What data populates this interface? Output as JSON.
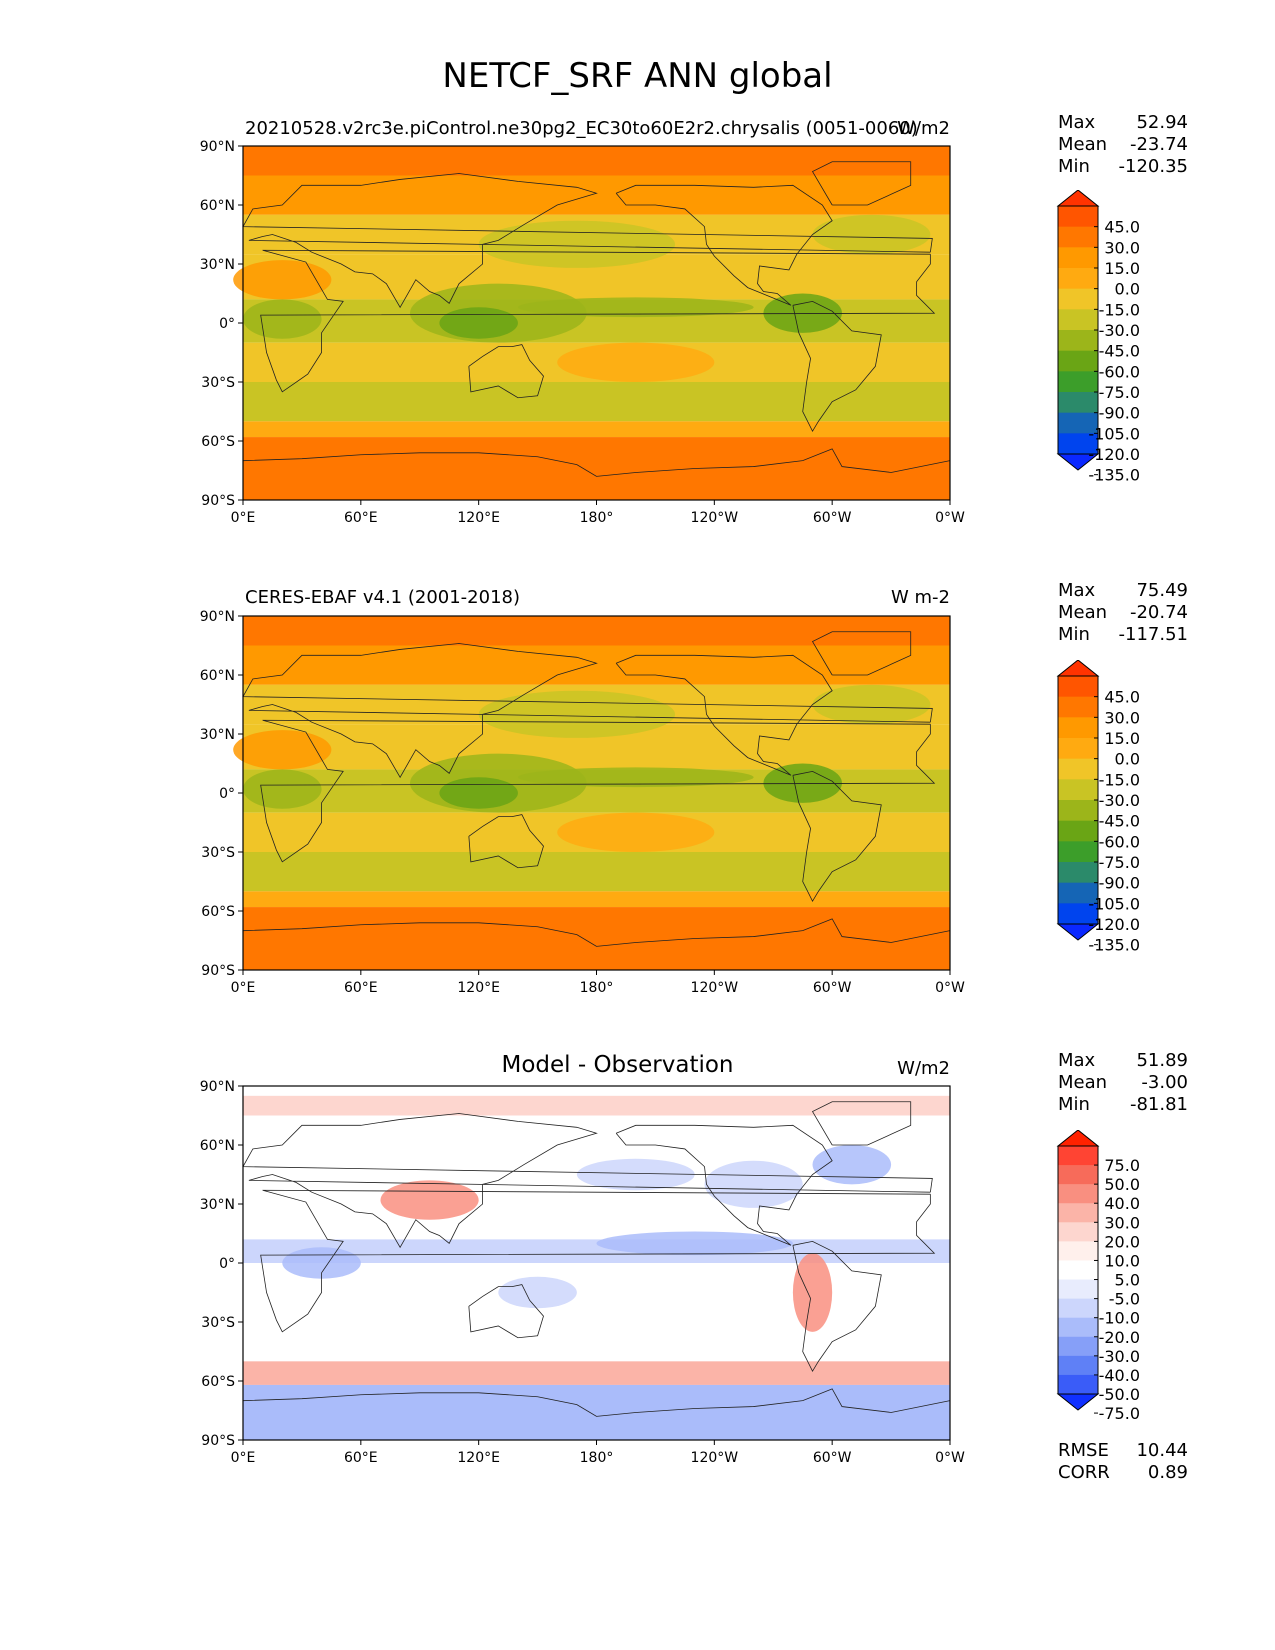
{
  "title": "NETCF_SRF ANN global",
  "panels": [
    {
      "left_title": "20210528.v2rc3e.piControl.ne30pg2_EC30to60E2r2.chrysalis (0051-0060)",
      "center_title": "",
      "units": "W/m2",
      "stats": {
        "max_label": "Max",
        "max": "52.94",
        "mean_label": "Mean",
        "mean": "-23.74",
        "min_label": "Min",
        "min": "-120.35"
      },
      "colorbar": {
        "labels": [
          "45.0",
          "30.0",
          "15.0",
          "0.0",
          "-15.0",
          "-30.0",
          "-45.0",
          "-60.0",
          "-75.0",
          "-90.0",
          "-105.0",
          "-120.0",
          "-135.0"
        ],
        "colors": [
          "#ff3300",
          "#ff5500",
          "#ff7700",
          "#ff9900",
          "#ffaa11",
          "#f0c528",
          "#c9c424",
          "#9cb51a",
          "#6aa515",
          "#3c9e2a",
          "#2b8a6a",
          "#1565b5",
          "#0044ee",
          "#0a28ff"
        ]
      }
    },
    {
      "left_title": "CERES-EBAF v4.1 (2001-2018)",
      "center_title": "",
      "units": "W m-2",
      "stats": {
        "max_label": "Max",
        "max": "75.49",
        "mean_label": "Mean",
        "mean": "-20.74",
        "min_label": "Min",
        "min": "-117.51"
      },
      "colorbar": {
        "labels": [
          "45.0",
          "30.0",
          "15.0",
          "0.0",
          "-15.0",
          "-30.0",
          "-45.0",
          "-60.0",
          "-75.0",
          "-90.0",
          "-105.0",
          "-120.0",
          "-135.0"
        ],
        "colors": [
          "#ff3300",
          "#ff5500",
          "#ff7700",
          "#ff9900",
          "#ffaa11",
          "#f0c528",
          "#c9c424",
          "#9cb51a",
          "#6aa515",
          "#3c9e2a",
          "#2b8a6a",
          "#1565b5",
          "#0044ee",
          "#0a28ff"
        ]
      }
    },
    {
      "left_title": "",
      "center_title": "Model - Observation",
      "units": "W/m2",
      "stats": {
        "max_label": "Max",
        "max": "51.89",
        "mean_label": "Mean",
        "mean": "-3.00",
        "min_label": "Min",
        "min": "-81.81"
      },
      "colorbar": {
        "labels": [
          "75.0",
          "50.0",
          "40.0",
          "30.0",
          "20.0",
          "10.0",
          "5.0",
          "-5.0",
          "-10.0",
          "-20.0",
          "-30.0",
          "-40.0",
          "-50.0",
          "-75.0"
        ],
        "colors": [
          "#ff2200",
          "#ff4433",
          "#f76b5a",
          "#f98f80",
          "#fbb4a8",
          "#fdd6cf",
          "#fff0ec",
          "#ffffff",
          "#e8ecfd",
          "#ccd6fc",
          "#aabcfa",
          "#869ff8",
          "#5f80f6",
          "#3a5cf8",
          "#1030ff"
        ]
      },
      "extra_stats": {
        "rmse_label": "RMSE",
        "rmse": "10.44",
        "corr_label": "CORR",
        "corr": "0.89"
      }
    }
  ],
  "axes": {
    "lat_ticks": [
      "90°N",
      "60°N",
      "30°N",
      "0°",
      "30°S",
      "60°S",
      "90°S"
    ],
    "lon_ticks": [
      "0°E",
      "60°E",
      "120°E",
      "180°",
      "120°W",
      "60°W",
      "0°W"
    ]
  }
}
